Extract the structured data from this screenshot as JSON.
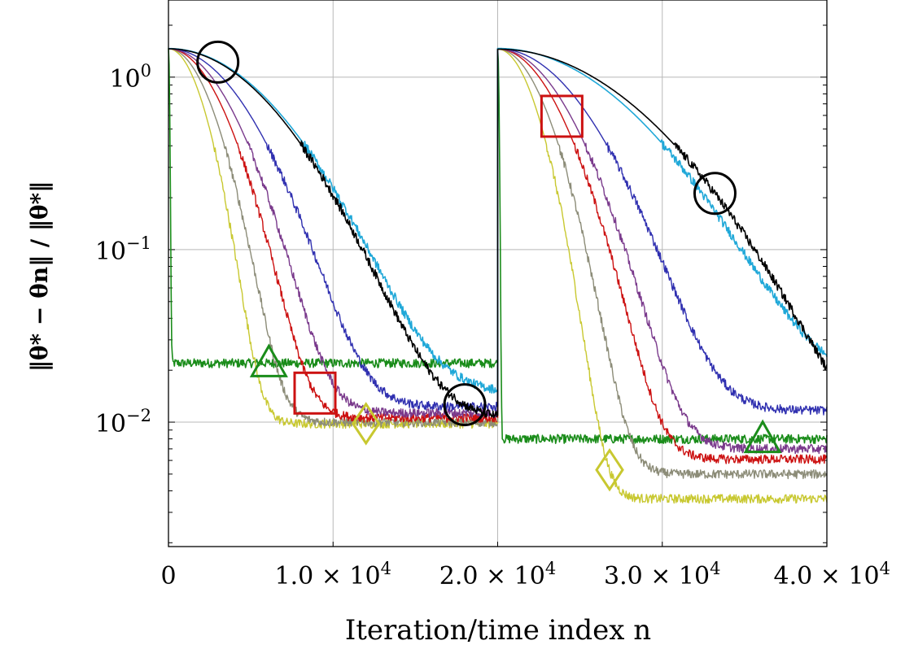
{
  "chart_data": {
    "type": "line",
    "title": "",
    "xlabel": "Iteration/time index n",
    "ylabel": "‖θ* − θn‖ / ‖θ*‖",
    "yscale": "log",
    "xlim": [
      0,
      40000
    ],
    "ylim": [
      0.0019,
      2.8
    ],
    "grid": true,
    "x_ticks": [
      {
        "value": 0,
        "mantissa": "0",
        "exponent": ""
      },
      {
        "value": 10000,
        "mantissa": "1.0 × 10",
        "exponent": "4"
      },
      {
        "value": 20000,
        "mantissa": "2.0 × 10",
        "exponent": "4"
      },
      {
        "value": 30000,
        "mantissa": "3.0 × 10",
        "exponent": "4"
      },
      {
        "value": 40000,
        "mantissa": "4.0 × 10",
        "exponent": "4"
      }
    ],
    "y_ticks": [
      {
        "value": 1,
        "base": "10",
        "exponent": "0"
      },
      {
        "value": 0.1,
        "base": "10",
        "exponent": "−1"
      },
      {
        "value": 0.01,
        "base": "10",
        "exponent": "−2"
      }
    ],
    "series": [
      {
        "name": "green-triangle",
        "color": "#1a8c1a",
        "marker": "triangle",
        "seg1": {
          "tau": 60,
          "floor": 0.022
        },
        "seg2": {
          "tau": 70,
          "floor": 0.008
        },
        "markers": [
          6100,
          36100
        ]
      },
      {
        "name": "yellow-diamond",
        "color": "#c8c830",
        "marker": "diamond",
        "seg1": {
          "tau": 1700,
          "floor": 0.0098
        },
        "seg2": {
          "tau": 1850,
          "floor": 0.0036
        },
        "markers": [
          12000,
          26800
        ]
      },
      {
        "name": "gray",
        "color": "#8c8c78",
        "marker": "none",
        "seg1": {
          "tau": 2100,
          "floor": 0.01
        },
        "seg2": {
          "tau": 2300,
          "floor": 0.005
        },
        "markers": []
      },
      {
        "name": "red-square",
        "color": "#cc1111",
        "marker": "square",
        "seg1": {
          "tau": 2600,
          "floor": 0.0106
        },
        "seg2": {
          "tau": 2900,
          "floor": 0.0061
        },
        "markers": [
          8900,
          23900
        ]
      },
      {
        "name": "purple",
        "color": "#7a3a8c",
        "marker": "none",
        "seg1": {
          "tau": 3000,
          "floor": 0.0113
        },
        "seg2": {
          "tau": 3300,
          "floor": 0.007
        },
        "markers": []
      },
      {
        "name": "blue",
        "color": "#3030b0",
        "marker": "none",
        "seg1": {
          "tau": 3700,
          "floor": 0.0123
        },
        "seg2": {
          "tau": 4100,
          "floor": 0.0117
        },
        "markers": []
      },
      {
        "name": "cyan",
        "color": "#20a8d8",
        "marker": "none",
        "seg1": {
          "tau": 5100,
          "floor": 0.0148
        },
        "seg2": {
          "tau": 6200,
          "floor": 0.0165
        },
        "markers": []
      },
      {
        "name": "black-circle",
        "color": "#000000",
        "marker": "circle",
        "seg1": {
          "tau": 5000,
          "floor": 0.0104
        },
        "seg2": {
          "tau": 6700,
          "floor": 0.0036
        },
        "markers": [
          3000,
          18000,
          33200
        ]
      }
    ],
    "start_value": 1.45,
    "restart_at": 20000
  }
}
